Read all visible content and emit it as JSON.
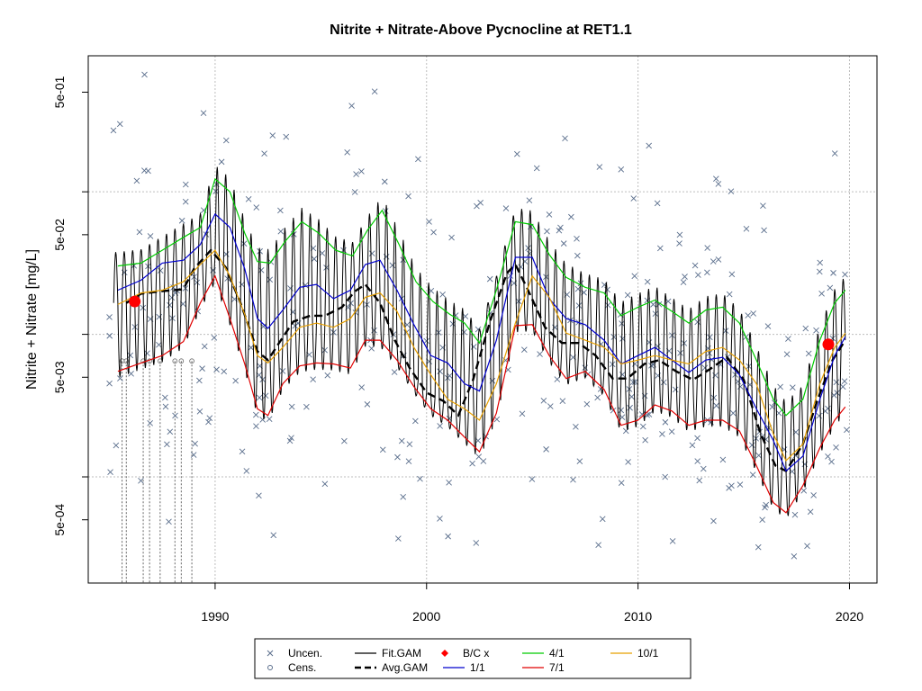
{
  "chart_data": {
    "type": "line",
    "title": "Nitrite + Nitrate-Above Pycnocline at RET1.1",
    "xlabel": "",
    "ylabel": "Nitrite + Nitrate [mg/L]",
    "y_scale": "log",
    "xlim": [
      1984,
      2021.3
    ],
    "ylim": [
      0.00018,
      0.9
    ],
    "x_ticks": [
      1990,
      2000,
      2010,
      2020
    ],
    "x_tick_labels": [
      "1990",
      "2000",
      "2010",
      "2020"
    ],
    "y_ticks": [
      0.0005,
      0.005,
      0.05,
      0.5
    ],
    "y_tick_labels": [
      "5e-04",
      "5e-03",
      "5e-02",
      "5e-01"
    ],
    "grid": true,
    "legend_position": "bottom",
    "legend": [
      {
        "label": "Uncen.",
        "kind": "x",
        "color": "#5a6e8c"
      },
      {
        "label": "Cens.",
        "kind": "o",
        "color": "#5a6e8c"
      },
      {
        "label": "Fit.GAM",
        "kind": "line",
        "color": "#000000"
      },
      {
        "label": "Avg.GAM",
        "kind": "dash",
        "color": "#000000"
      },
      {
        "label": "B/C x",
        "kind": "diamond",
        "color": "#ff0000"
      },
      {
        "label": "1/1",
        "kind": "line",
        "color": "#0000cd"
      },
      {
        "label": "4/1",
        "kind": "line",
        "color": "#00cc00"
      },
      {
        "label": "7/1",
        "kind": "line",
        "color": "#e00000"
      },
      {
        "label": "10/1",
        "kind": "line",
        "color": "#e8a000"
      }
    ],
    "series": [
      {
        "name": "Avg.GAM",
        "color": "#000000",
        "x": [
          1985.8,
          1986.5,
          1987.5,
          1988.5,
          1989,
          1989.8,
          1990.5,
          1991.2,
          1992,
          1992.5,
          1993,
          1993.7,
          1994.5,
          1995.2,
          1996,
          1996.6,
          1997.1,
          1997.8,
          1998.5,
          1999.2,
          2000,
          2000.8,
          2001.5,
          2002.2,
          2003,
          2003.8,
          2004.2,
          2004.8,
          2005.6,
          2006.4,
          2007.2,
          2008,
          2008.8,
          2009.5,
          2010.3,
          2011,
          2011.8,
          2012.6,
          2013.4,
          2014.2,
          2015,
          2015.8,
          2016.5,
          2017,
          2017.8,
          2018.5,
          2019.2,
          2019.8
        ],
        "values": [
          0.0166,
          0.0193,
          0.0201,
          0.0207,
          0.0288,
          0.0389,
          0.0295,
          0.0166,
          0.0076,
          0.0066,
          0.0086,
          0.0123,
          0.0135,
          0.0135,
          0.0155,
          0.02,
          0.0224,
          0.0166,
          0.0091,
          0.0058,
          0.0039,
          0.0034,
          0.0027,
          0.0048,
          0.0123,
          0.0269,
          0.0309,
          0.0204,
          0.0112,
          0.0087,
          0.0087,
          0.0071,
          0.0049,
          0.0049,
          0.0062,
          0.0066,
          0.0055,
          0.0048,
          0.0057,
          0.0069,
          0.0048,
          0.002,
          0.0012,
          0.0011,
          0.0017,
          0.0035,
          0.0066,
          0.0091
        ]
      },
      {
        "name": "1/1",
        "color": "#0000cd",
        "x": [
          1985.4,
          1986.5,
          1987.5,
          1988.5,
          1989.3,
          1990,
          1990.7,
          1991.4,
          1992,
          1992.5,
          1993.2,
          1994,
          1994.8,
          1995.6,
          1996.4,
          1997.1,
          1997.8,
          1998.6,
          1999.4,
          2000.2,
          2001,
          2001.8,
          2002.5,
          2003.3,
          2004.2,
          2005,
          2005.8,
          2006.6,
          2007.5,
          2008.4,
          2009.2,
          2010,
          2010.8,
          2011.6,
          2012.4,
          2013.2,
          2014,
          2014.8,
          2015.6,
          2016.4,
          2017,
          2017.8,
          2018.6,
          2019.3,
          2019.8
        ],
        "values": [
          0.0204,
          0.024,
          0.0316,
          0.0331,
          0.0427,
          0.0698,
          0.0562,
          0.0288,
          0.0129,
          0.011,
          0.0148,
          0.0214,
          0.0224,
          0.0178,
          0.0204,
          0.0309,
          0.0331,
          0.0204,
          0.0117,
          0.0071,
          0.0063,
          0.0045,
          0.004,
          0.0091,
          0.0347,
          0.0347,
          0.0178,
          0.0129,
          0.0117,
          0.0091,
          0.0062,
          0.0071,
          0.0081,
          0.0066,
          0.0054,
          0.0066,
          0.0069,
          0.0052,
          0.003,
          0.0018,
          0.0011,
          0.0014,
          0.0035,
          0.0071,
          0.0096
        ]
      },
      {
        "name": "4/1",
        "color": "#00cc00",
        "x": [
          1985.4,
          1986.5,
          1987.5,
          1988.5,
          1989.3,
          1990,
          1990.7,
          1991.4,
          1992,
          1992.6,
          1993.3,
          1994.1,
          1994.9,
          1995.7,
          1996.5,
          1997.2,
          1997.9,
          1998.7,
          1999.5,
          2000.3,
          2001.1,
          2001.8,
          2002.5,
          2003.3,
          2004.2,
          2005,
          2005.8,
          2006.6,
          2007.5,
          2008.4,
          2009.2,
          2010,
          2010.8,
          2011.6,
          2012.4,
          2013.2,
          2014,
          2014.8,
          2015.6,
          2016.4,
          2017,
          2017.8,
          2018.6,
          2019.3,
          2019.8
        ],
        "values": [
          0.0302,
          0.0316,
          0.0389,
          0.0479,
          0.0562,
          0.123,
          0.1,
          0.0513,
          0.0324,
          0.0316,
          0.0447,
          0.0617,
          0.0513,
          0.0389,
          0.0355,
          0.0537,
          0.0741,
          0.0427,
          0.0234,
          0.017,
          0.0138,
          0.012,
          0.0087,
          0.0204,
          0.0617,
          0.0589,
          0.0363,
          0.0251,
          0.0214,
          0.0195,
          0.0135,
          0.0155,
          0.0174,
          0.0145,
          0.012,
          0.0148,
          0.0155,
          0.012,
          0.0066,
          0.0035,
          0.0027,
          0.0035,
          0.0091,
          0.0166,
          0.0204
        ]
      },
      {
        "name": "7/1",
        "color": "#e00000",
        "x": [
          1985.4,
          1986.5,
          1987.5,
          1988.5,
          1989.3,
          1990,
          1990.7,
          1991.4,
          1992,
          1992.5,
          1993.2,
          1994,
          1994.8,
          1995.6,
          1996.4,
          1997.1,
          1997.8,
          1998.6,
          1999.4,
          2000.2,
          2001,
          2001.8,
          2002.5,
          2003.3,
          2004.2,
          2005,
          2005.8,
          2006.6,
          2007.5,
          2008.4,
          2009.2,
          2010,
          2010.8,
          2011.6,
          2012.4,
          2013.2,
          2014,
          2014.8,
          2015.6,
          2016.4,
          2017,
          2017.8,
          2018.6,
          2019.3,
          2019.8
        ],
        "values": [
          0.0055,
          0.0063,
          0.0071,
          0.0089,
          0.0166,
          0.0257,
          0.0129,
          0.0062,
          0.003,
          0.0027,
          0.0045,
          0.006,
          0.0063,
          0.0062,
          0.0058,
          0.0091,
          0.0091,
          0.0066,
          0.0043,
          0.003,
          0.0025,
          0.0019,
          0.0015,
          0.0028,
          0.0115,
          0.0117,
          0.0071,
          0.0049,
          0.0055,
          0.0041,
          0.0023,
          0.0025,
          0.0032,
          0.0029,
          0.0023,
          0.0025,
          0.0025,
          0.0021,
          0.0012,
          0.00066,
          0.00056,
          0.00087,
          0.0016,
          0.0025,
          0.0031
        ]
      },
      {
        "name": "10/1",
        "color": "#e8a000",
        "x": [
          1985.4,
          1986.5,
          1987.5,
          1988.5,
          1989.3,
          1990,
          1990.7,
          1991.4,
          1992,
          1992.5,
          1993.2,
          1994,
          1994.8,
          1995.6,
          1996.4,
          1997.1,
          1997.8,
          1998.6,
          1999.4,
          2000.2,
          2001,
          2001.8,
          2002.5,
          2003.3,
          2004.2,
          2005,
          2005.8,
          2006.6,
          2007.5,
          2008.4,
          2009.2,
          2010,
          2010.8,
          2011.6,
          2012.4,
          2013.2,
          2014,
          2014.8,
          2015.6,
          2016.4,
          2017,
          2017.8,
          2018.6,
          2019.3,
          2019.8
        ],
        "values": [
          0.0162,
          0.0195,
          0.0204,
          0.0234,
          0.0309,
          0.0389,
          0.0257,
          0.0138,
          0.0071,
          0.0063,
          0.0081,
          0.0112,
          0.012,
          0.0112,
          0.0129,
          0.0182,
          0.0195,
          0.0145,
          0.0081,
          0.0052,
          0.0035,
          0.003,
          0.0025,
          0.0045,
          0.012,
          0.0257,
          0.0182,
          0.0102,
          0.0091,
          0.0081,
          0.0062,
          0.0066,
          0.0071,
          0.0066,
          0.0062,
          0.0076,
          0.0081,
          0.0066,
          0.0045,
          0.002,
          0.0013,
          0.0017,
          0.0045,
          0.0081,
          0.0102
        ]
      }
    ],
    "fit_gam": {
      "name": "Fit.GAM",
      "color": "#000000",
      "cycles_per_year": 2.5,
      "start": 1985.2,
      "end": 2019.8
    },
    "bc_points": {
      "name": "B/C x",
      "color": "#ff0000",
      "x": [
        1986.2,
        2019.0
      ],
      "values": [
        0.017,
        0.0085
      ]
    },
    "censored": {
      "name": "Cens.",
      "x": [
        1985.6,
        1985.8,
        1986.6,
        1986.9,
        1987.4,
        1988.1,
        1988.4,
        1988.9
      ],
      "values": [
        0.0065,
        0.0065,
        0.0065,
        0.0065,
        0.0065,
        0.0065,
        0.0065,
        0.0065
      ]
    },
    "uncensored": {
      "name": "Uncen.",
      "color": "#5a6e8c",
      "count": 420,
      "seed": 7
    }
  }
}
